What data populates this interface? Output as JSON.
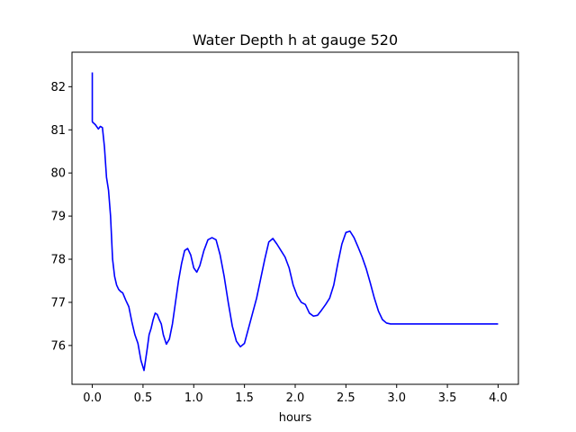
{
  "chart_data": {
    "type": "line",
    "title": "Water Depth h at gauge 520",
    "xlabel": "hours",
    "ylabel": "",
    "xlim": [
      -0.2,
      4.2
    ],
    "ylim": [
      75.1,
      82.8
    ],
    "xticks": [
      0.0,
      0.5,
      1.0,
      1.5,
      2.0,
      2.5,
      3.0,
      3.5,
      4.0
    ],
    "xtick_labels": [
      "0.0",
      "0.5",
      "1.0",
      "1.5",
      "2.0",
      "2.5",
      "3.0",
      "3.5",
      "4.0"
    ],
    "yticks": [
      76,
      77,
      78,
      79,
      80,
      81,
      82
    ],
    "ytick_labels": [
      "76",
      "77",
      "78",
      "79",
      "80",
      "81",
      "82"
    ],
    "grid": false,
    "series": [
      {
        "color": "#0000ff",
        "x": [
          0.0,
          0.0,
          0.002,
          0.03,
          0.06,
          0.08,
          0.1,
          0.12,
          0.14,
          0.16,
          0.18,
          0.2,
          0.22,
          0.24,
          0.26,
          0.28,
          0.3,
          0.33,
          0.36,
          0.39,
          0.42,
          0.45,
          0.48,
          0.51,
          0.54,
          0.56,
          0.58,
          0.6,
          0.62,
          0.64,
          0.66,
          0.68,
          0.7,
          0.73,
          0.76,
          0.79,
          0.82,
          0.85,
          0.88,
          0.91,
          0.94,
          0.97,
          1.0,
          1.03,
          1.06,
          1.1,
          1.14,
          1.18,
          1.22,
          1.26,
          1.3,
          1.34,
          1.38,
          1.42,
          1.46,
          1.5,
          1.54,
          1.58,
          1.62,
          1.66,
          1.7,
          1.74,
          1.78,
          1.82,
          1.86,
          1.9,
          1.94,
          1.98,
          2.02,
          2.06,
          2.1,
          2.14,
          2.18,
          2.22,
          2.26,
          2.3,
          2.34,
          2.38,
          2.42,
          2.46,
          2.5,
          2.54,
          2.58,
          2.62,
          2.66,
          2.7,
          2.74,
          2.78,
          2.82,
          2.86,
          2.9,
          2.94,
          2.98,
          3.02,
          3.06,
          3.1,
          3.14,
          3.18,
          3.22,
          3.26,
          3.3,
          3.34,
          3.38,
          3.42,
          3.46,
          3.5,
          3.54,
          3.58,
          3.62,
          3.66,
          3.7,
          3.74,
          3.78,
          3.82,
          3.86,
          3.9,
          3.94,
          3.98,
          4.0
        ],
        "y": [
          82.33,
          81.2,
          81.18,
          81.12,
          81.02,
          81.08,
          81.05,
          80.6,
          79.9,
          79.6,
          79.0,
          78.0,
          77.6,
          77.4,
          77.3,
          77.25,
          77.22,
          77.05,
          76.9,
          76.55,
          76.25,
          76.05,
          75.65,
          75.42,
          75.9,
          76.25,
          76.4,
          76.6,
          76.75,
          76.72,
          76.6,
          76.5,
          76.25,
          76.03,
          76.15,
          76.5,
          77.0,
          77.5,
          77.9,
          78.2,
          78.25,
          78.1,
          77.8,
          77.7,
          77.85,
          78.2,
          78.45,
          78.5,
          78.45,
          78.1,
          77.6,
          77.0,
          76.45,
          76.1,
          75.97,
          76.05,
          76.4,
          76.75,
          77.1,
          77.55,
          78.0,
          78.4,
          78.48,
          78.35,
          78.2,
          78.05,
          77.8,
          77.4,
          77.15,
          77.0,
          76.95,
          76.75,
          76.68,
          76.7,
          76.82,
          76.95,
          77.1,
          77.4,
          77.9,
          78.35,
          78.62,
          78.65,
          78.5,
          78.28,
          78.05,
          77.78,
          77.45,
          77.1,
          76.8,
          76.6,
          76.52,
          76.5,
          76.5,
          76.5,
          76.5,
          76.5,
          76.5,
          76.5,
          76.5,
          76.5,
          76.5,
          76.5,
          76.5,
          76.5,
          76.5,
          76.5,
          76.5,
          76.5,
          76.5,
          76.5,
          76.5,
          76.5,
          76.5,
          76.5,
          76.5,
          76.5,
          76.5,
          76.5,
          76.5
        ]
      }
    ]
  }
}
